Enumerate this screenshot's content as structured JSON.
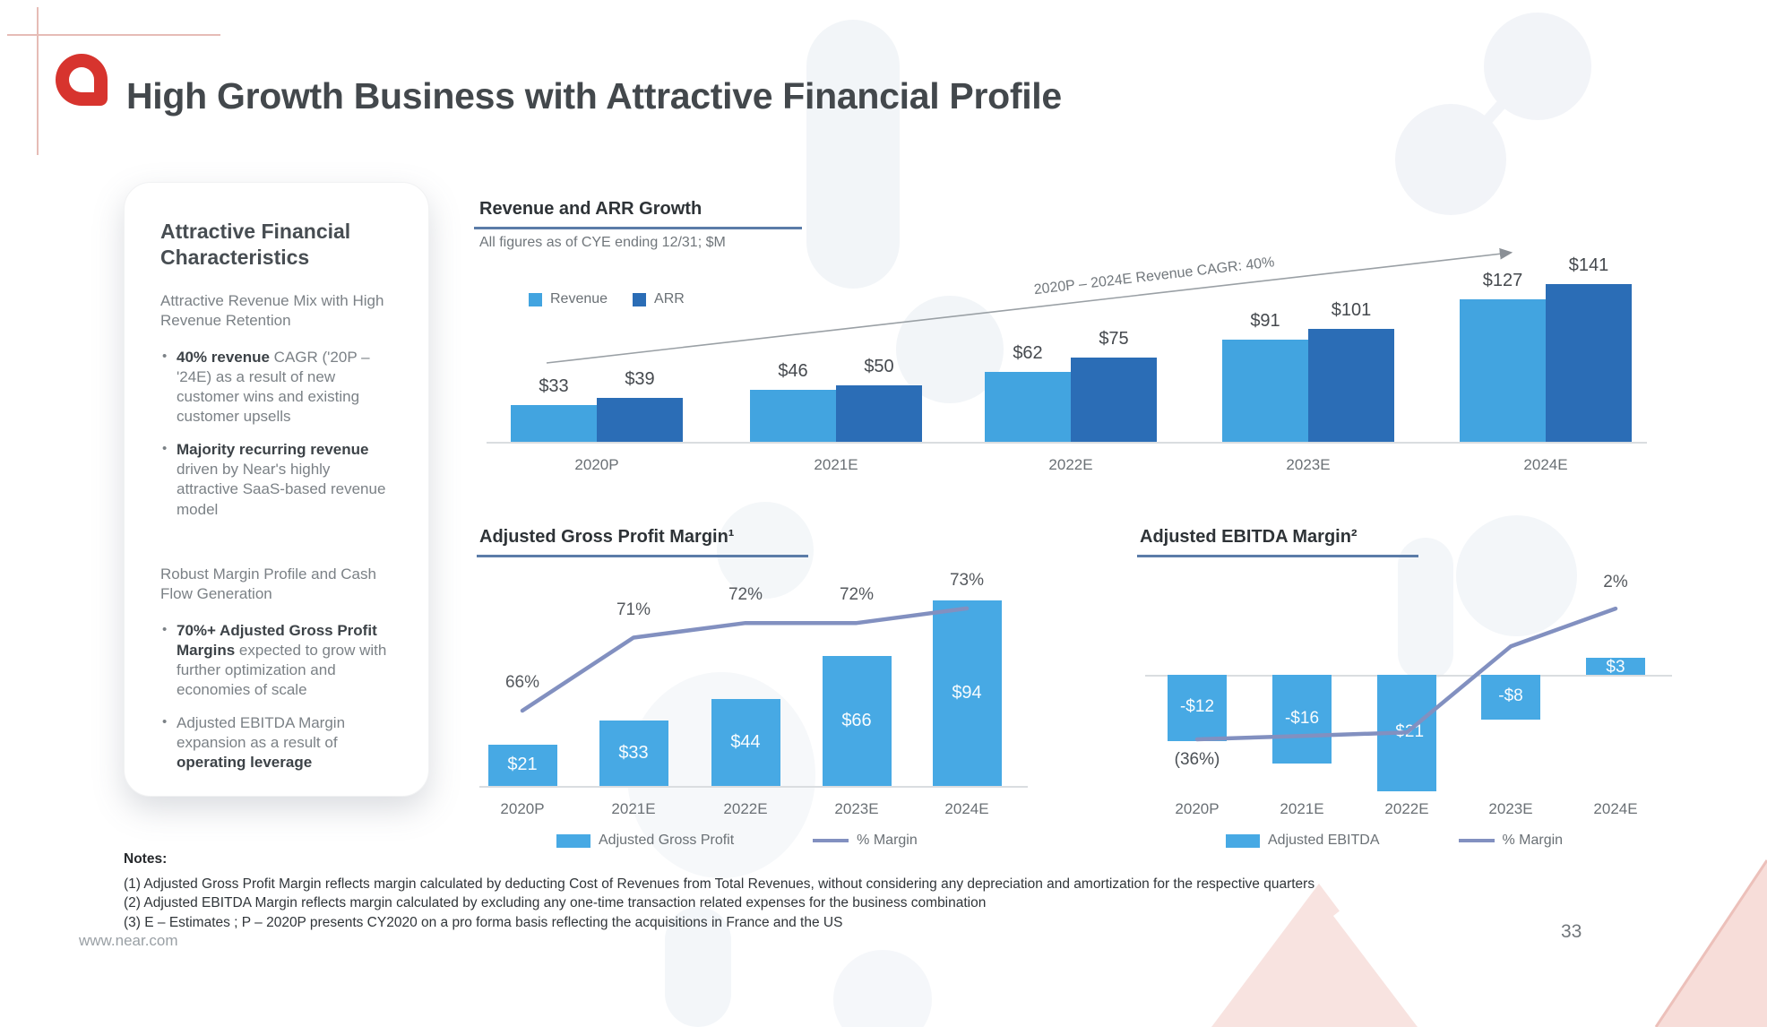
{
  "slide": {
    "title": "High Growth Business with Attractive Financial Profile",
    "logo_name": "near-logo"
  },
  "colors": {
    "revenue_light_blue": "#42a4e0",
    "arr_dark_blue": "#2b6db6",
    "bar_blue": "#47a9e4",
    "margin_line": "#8290c0",
    "title_underline": "#5b7ca8",
    "logo_red": "#d7342e"
  },
  "sidebar_card": {
    "heading": "Attractive Financial Characteristics",
    "sections": [
      {
        "intro": "Attractive Revenue Mix with High Revenue Retention",
        "bullets": [
          [
            {
              "text": "40% revenue",
              "bold": true
            },
            {
              "text": " CAGR ('20P – '24E) as a result of new customer wins and existing customer upsells",
              "bold": false
            }
          ],
          [
            {
              "text": "Majority recurring revenue",
              "bold": true
            },
            {
              "text": " driven by Near's highly attractive SaaS-based revenue model",
              "bold": false
            }
          ]
        ]
      },
      {
        "intro": "Robust Margin Profile and Cash Flow Generation",
        "bullets": [
          [
            {
              "text": "70%+ Adjusted Gross Profit Margins",
              "bold": true
            },
            {
              "text": " expected to grow with further optimization and economies of scale",
              "bold": false
            }
          ],
          [
            {
              "text": "Adjusted EBITDA Margin expansion as a result of ",
              "bold": false
            },
            {
              "text": "operating leverage",
              "bold": true
            }
          ]
        ]
      }
    ]
  },
  "chart_data": [
    {
      "id": "revenue_arr_growth",
      "type": "bar",
      "title": "Revenue and ARR Growth",
      "subtitle": "All figures as of CYE ending 12/31; $M",
      "categories": [
        "2020P",
        "2021E",
        "2022E",
        "2023E",
        "2024E"
      ],
      "series": [
        {
          "name": "Revenue",
          "color": "#42a4e0",
          "values": [
            33,
            46,
            62,
            91,
            127
          ],
          "labels": [
            "$33",
            "$46",
            "$62",
            "$91",
            "$127"
          ]
        },
        {
          "name": "ARR",
          "color": "#2b6db6",
          "values": [
            39,
            50,
            75,
            101,
            141
          ],
          "labels": [
            "$39",
            "$50",
            "$75",
            "$101",
            "$141"
          ]
        }
      ],
      "annotation": "2020P – 2024E Revenue CAGR: 40%",
      "legend_position": "top-left",
      "ylim": [
        0,
        150
      ],
      "grid": false
    },
    {
      "id": "adjusted_gross_profit_margin",
      "type": "bar+line",
      "title": "Adjusted Gross Profit Margin¹",
      "categories": [
        "2020P",
        "2021E",
        "2022E",
        "2023E",
        "2024E"
      ],
      "bar_series": {
        "name": "Adjusted Gross Profit",
        "color": "#47a9e4",
        "values": [
          21,
          33,
          44,
          66,
          94
        ],
        "labels": [
          "$21",
          "$33",
          "$44",
          "$66",
          "$94"
        ]
      },
      "line_series": {
        "name": "% Margin",
        "color": "#8290c0",
        "values_pct": [
          66,
          71,
          72,
          72,
          73
        ],
        "labels": [
          "66%",
          "71%",
          "72%",
          "72%",
          "73%"
        ]
      },
      "grid": false
    },
    {
      "id": "adjusted_ebitda_margin",
      "type": "bar+line",
      "title": "Adjusted EBITDA Margin²",
      "categories": [
        "2020P",
        "2021E",
        "2022E",
        "2023E",
        "2024E"
      ],
      "bar_series": {
        "name": "Adjusted EBITDA",
        "color": "#47a9e4",
        "values": [
          -12,
          -16,
          -21,
          -8,
          3
        ],
        "labels": [
          "-$12",
          "-$16",
          "-$21",
          "-$8",
          "$3"
        ]
      },
      "line_series": {
        "name": "% Margin",
        "color": "#8290c0",
        "values_pct": [
          -36,
          -35,
          -34,
          -9,
          2
        ],
        "labels": [
          "(36%)",
          "",
          "",
          "",
          "2%"
        ]
      },
      "grid": false
    }
  ],
  "notes": {
    "heading": "Notes:",
    "items": [
      "(1) Adjusted Gross Profit Margin reflects margin calculated by deducting Cost of Revenues from Total Revenues, without considering any depreciation and amortization for the respective quarters",
      "(2) Adjusted EBITDA Margin reflects margin calculated by excluding any one-time transaction related expenses for the business combination",
      "(3) E – Estimates ; P – 2020P presents CY2020 on a pro forma basis reflecting the acquisitions in France and the US"
    ]
  },
  "footer": {
    "url": "www.near.com",
    "page_number": "33"
  }
}
